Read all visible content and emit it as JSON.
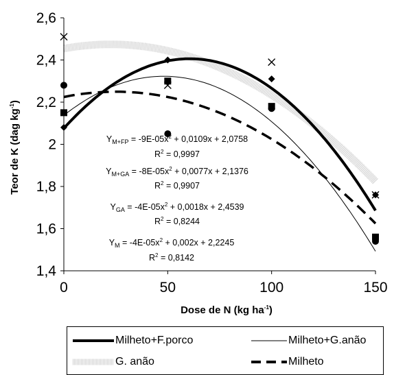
{
  "chart_data": {
    "type": "scatter",
    "xlabel": "Dose de N (kg ha",
    "xlabel_sup": "-1",
    "xlabel_end": ")",
    "ylabel": "Teor de K (dag kg",
    "ylabel_sup": "-1",
    "ylabel_end": ")",
    "xlim": [
      0,
      150
    ],
    "ylim": [
      1.4,
      2.6
    ],
    "xticks": [
      "0",
      "50",
      "100",
      "150"
    ],
    "yticks": [
      "1,4",
      "1,6",
      "1,8",
      "2",
      "2,2",
      "2,4",
      "2,6"
    ],
    "grid": false,
    "legend_position": "bottom",
    "series": [
      {
        "name": "Milheto+F.porco",
        "marker": "diamond",
        "x": [
          0,
          50,
          100,
          150
        ],
        "y": [
          2.08,
          2.4,
          2.31,
          1.76
        ],
        "curve": {
          "a": -9e-05,
          "b": 0.0109,
          "c": 2.0758
        },
        "style": "solid-thick",
        "color": "#000000"
      },
      {
        "name": "Milheto+G.anão",
        "marker": "square",
        "x": [
          0,
          50,
          100,
          150
        ],
        "y": [
          2.15,
          2.3,
          2.18,
          1.56
        ],
        "curve": {
          "a": -8e-05,
          "b": 0.0077,
          "c": 2.1376
        },
        "style": "solid-thin",
        "color": "#000000"
      },
      {
        "name": "G. anão",
        "marker": "x",
        "x": [
          0,
          50,
          100,
          150
        ],
        "y": [
          2.51,
          2.28,
          2.39,
          1.76
        ],
        "curve": {
          "a": -4e-05,
          "b": 0.0018,
          "c": 2.4539
        },
        "style": "dotted-band",
        "color": "#c8c8c8"
      },
      {
        "name": "Milheto",
        "marker": "circle",
        "x": [
          0,
          50,
          100,
          150
        ],
        "y": [
          2.28,
          2.05,
          2.17,
          1.54
        ],
        "curve": {
          "a": -4e-05,
          "b": 0.002,
          "c": 2.2245
        },
        "style": "dashed",
        "color": "#000000"
      }
    ],
    "equations": [
      {
        "y_prefix": "Y",
        "y_sub": "M+FP",
        "eq_a": " = -9E-05x",
        "eq_exp": "2",
        "eq_b": " + 0,0109x + 2,0758",
        "r2_label": "R",
        "r2_exp": "2",
        "r2_value": " = 0,9997"
      },
      {
        "y_prefix": "Y",
        "y_sub": "M+GA",
        "eq_a": " = -8E-05x",
        "eq_exp": "2",
        "eq_b": " + 0,0077x + 2,1376",
        "r2_label": "R",
        "r2_exp": "2",
        "r2_value": " = 0,9907"
      },
      {
        "y_prefix": "Y",
        "y_sub": "GA",
        "eq_a": " = -4E-05x",
        "eq_exp": "2",
        "eq_b": " + 0,0018x + 2,4539",
        "r2_label": "R",
        "r2_exp": "2",
        "r2_value": " = 0,8244"
      },
      {
        "y_prefix": "Y",
        "y_sub": "M",
        "eq_a": " = -4E-05x",
        "eq_exp": "2",
        "eq_b": " + 0,002x + 2,2245",
        "r2_label": "R",
        "r2_exp": "2",
        "r2_value": " = 0,8142"
      }
    ]
  }
}
